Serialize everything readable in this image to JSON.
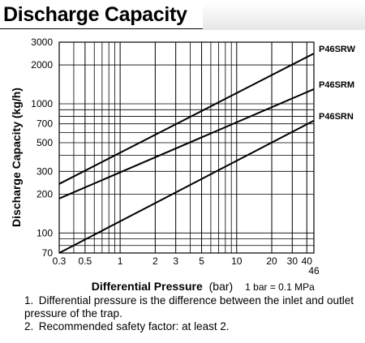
{
  "header": {
    "title": "Discharge Capacity"
  },
  "chart_data": {
    "type": "line",
    "xscale": "log",
    "yscale": "log",
    "xlim": [
      0.3,
      46
    ],
    "ylim": [
      70,
      3000
    ],
    "xlabel": "Differential Pressure",
    "xlabel_unit": "(bar)",
    "ylabel": "Discharge Capacity (kg/h)",
    "x_ticks": [
      "0.3",
      "0.5",
      "1",
      "2",
      "3",
      "5",
      "10",
      "20",
      "30",
      "40"
    ],
    "x_end_tick": "46",
    "y_ticks": [
      "3000",
      "2000",
      "1000",
      "700",
      "500",
      "300",
      "200",
      "100",
      "70"
    ],
    "unit_note": "1 bar = 0.1 MPa",
    "series": [
      {
        "name": "P46SRW",
        "x": [
          0.3,
          46
        ],
        "y": [
          240,
          2450
        ]
      },
      {
        "name": "P46SRM",
        "x": [
          0.3,
          46
        ],
        "y": [
          185,
          1300
        ]
      },
      {
        "name": "P46SRN",
        "x": [
          0.3,
          46
        ],
        "y": [
          70,
          740
        ]
      }
    ]
  },
  "notes": [
    {
      "num": "1.",
      "text": "Differential pressure is the difference between the inlet and outlet pressure of the trap."
    },
    {
      "num": "2.",
      "text": "Recommended safety factor: at least 2."
    }
  ]
}
